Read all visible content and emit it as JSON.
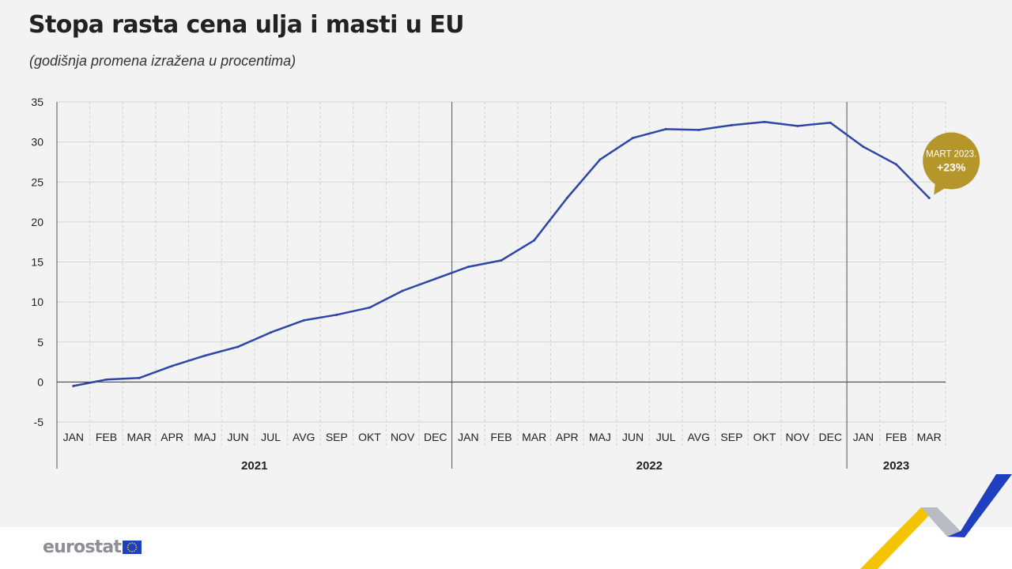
{
  "title": "Stopa rasta cena ulja i masti u EU",
  "subtitle": "(godišnja promena izražena u procentima)",
  "callout": {
    "line1": "MART 2023.",
    "line2": "+23%"
  },
  "brand": {
    "logo_text": "eurostat"
  },
  "colors": {
    "line": "#2e46a8",
    "callout": "#b5962a",
    "brand_gray": "#8c8f94",
    "accent_yellow": "#f5c400",
    "accent_blue": "#1f3fbf"
  },
  "chart_data": {
    "type": "line",
    "categories": [
      "JAN",
      "FEB",
      "MAR",
      "APR",
      "MAJ",
      "JUN",
      "JUL",
      "AVG",
      "SEP",
      "OKT",
      "NOV",
      "DEC",
      "JAN",
      "FEB",
      "MAR",
      "APR",
      "MAJ",
      "JUN",
      "JUL",
      "AVG",
      "SEP",
      "OKT",
      "NOV",
      "DEC",
      "JAN",
      "FEB",
      "MAR"
    ],
    "year_groups": [
      {
        "label": "2021",
        "months": 12
      },
      {
        "label": "2022",
        "months": 12
      },
      {
        "label": "2023",
        "months": 3
      }
    ],
    "series": [
      {
        "values": [
          -0.5,
          0.3,
          0.5,
          2.0,
          3.3,
          4.4,
          6.2,
          7.7,
          8.4,
          9.3,
          11.4,
          12.9,
          14.4,
          15.2,
          17.7,
          23.0,
          27.8,
          30.5,
          31.6,
          31.5,
          32.1,
          32.5,
          32.0,
          32.4,
          29.4,
          27.2,
          23.0
        ]
      }
    ],
    "ylim": [
      -5,
      35
    ],
    "yticks": [
      -5,
      0,
      5,
      10,
      15,
      20,
      25,
      30,
      35
    ],
    "grid": true
  }
}
